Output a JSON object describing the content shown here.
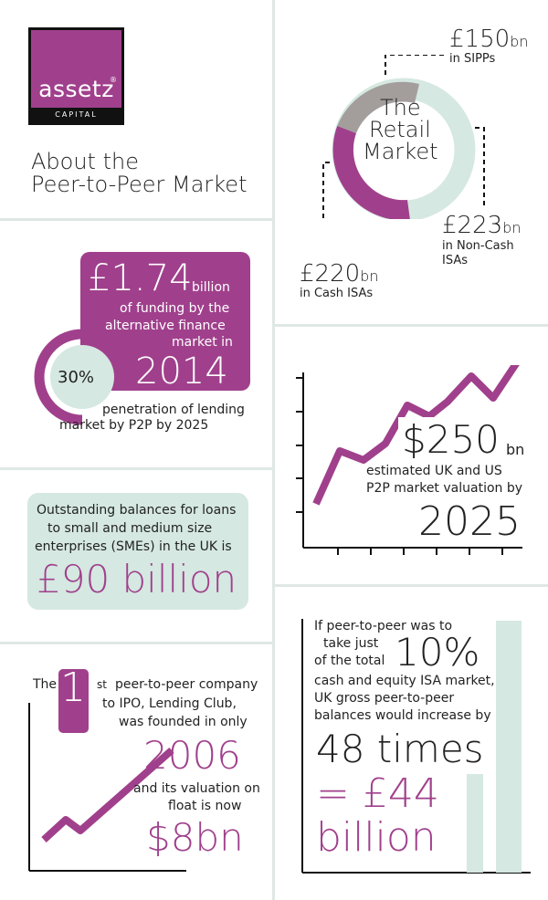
{
  "colors": {
    "purple": "#a0408c",
    "mint": "#d5e8e1",
    "grey": "#a39e9c",
    "dark": "#222222"
  },
  "logo": {
    "name": "assetz",
    "sub": "CAPITAL"
  },
  "heading": {
    "line1": "About the",
    "line2": "Peer-to-Peer Market"
  },
  "retail": {
    "center1": "The",
    "center2": "Retail",
    "center3": "Market",
    "segments": [
      {
        "name": "SIPPs",
        "value_bn": 150
      },
      {
        "name": "Non-Cash ISAs",
        "value_bn": 223
      },
      {
        "name": "Cash ISAs",
        "value_bn": 220
      }
    ],
    "sipps_value": "£150",
    "sipps_unit": "bn",
    "sipps_label": "in SIPPs",
    "noncash_value": "£223",
    "noncash_unit": "bn",
    "noncash_label1": "in Non-Cash",
    "noncash_label2": "ISAs",
    "cash_value": "£220",
    "cash_unit": "bn",
    "cash_label": "in Cash ISAs"
  },
  "funding": {
    "amount": "£1.74",
    "unit": "billion",
    "line1": "of funding by the",
    "line2": "alternative finance",
    "line3": "market in",
    "year": "2014",
    "pct": "30%",
    "pct_fraction": 0.3,
    "pct_text1": "penetration of lending",
    "pct_text2": "market by P2P by 2025"
  },
  "valuation": {
    "amount": "$250",
    "unit": "bn",
    "line1": "estimated UK and US",
    "line2": "P2P market valuation by",
    "year": "2025"
  },
  "sme": {
    "line1": "Outstanding balances for loans",
    "line2": "to small and medium size",
    "line3": "enterprises (SMEs) in the UK is",
    "amount": "£90 billion"
  },
  "lending_club": {
    "the": "The",
    "num": "1",
    "suffix": "st",
    "line1": "peer-to-peer company",
    "line2": "to IPO, Lending Club,",
    "line3": "was founded in only",
    "year": "2006",
    "line4": "and its valuation on",
    "line5": "float is now",
    "value": "$8bn"
  },
  "isa": {
    "line1": "If peer-to-peer was to",
    "line2": "take just",
    "line3": "of the total",
    "pct": "10%",
    "line4": "cash and equity ISA market,",
    "line5": "UK gross peer-to-peer",
    "line6": "balances would increase by",
    "times": "48 times",
    "eq": "= £44",
    "billion": "billion"
  }
}
